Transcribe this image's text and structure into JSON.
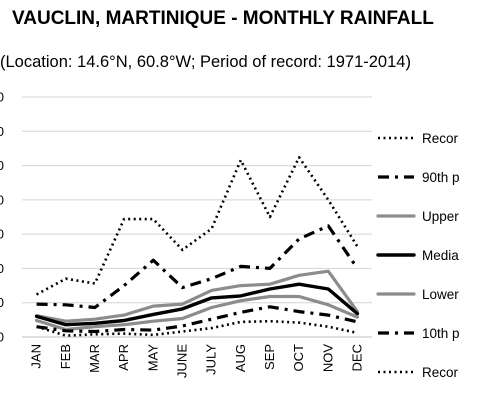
{
  "chart_data": {
    "type": "line",
    "title": "VAUCLIN, MARTINIQUE - MONTHLY RAINFALL",
    "subtitle": "(Location: 14.6°N, 60.8°W; Period of record: 1971-2014)",
    "categories": [
      "JAN",
      "FEB",
      "MAR",
      "APR",
      "MAY",
      "JUNE",
      "JULY",
      "AUG",
      "SEP",
      "OCT",
      "NOV",
      "DEC"
    ],
    "y_ticks": [
      "0",
      "0",
      "0",
      "0",
      "0",
      "0",
      "0",
      "0"
    ],
    "ylim": [
      0,
      350
    ],
    "grid": true,
    "legend_position": "right",
    "series": [
      {
        "name": "Recor",
        "color": "#000000",
        "values": [
          62,
          85,
          78,
          172,
          172,
          127,
          158,
          258,
          175,
          262,
          200,
          132
        ]
      },
      {
        "name": "90th p",
        "color": "#000000",
        "values": [
          48,
          47,
          43,
          75,
          112,
          72,
          85,
          103,
          100,
          143,
          162,
          100
        ]
      },
      {
        "name": "Upper",
        "color": "#8c8c8c",
        "values": [
          31,
          23,
          26,
          32,
          45,
          48,
          68,
          75,
          77,
          90,
          96,
          37
        ]
      },
      {
        "name": "Media",
        "color": "#000000",
        "values": [
          30,
          18,
          20,
          24,
          33,
          41,
          57,
          60,
          70,
          77,
          70,
          34
        ]
      },
      {
        "name": "Lower",
        "color": "#8c8c8c",
        "values": [
          24,
          11,
          15,
          18,
          23,
          27,
          43,
          53,
          59,
          59,
          47,
          29
        ]
      },
      {
        "name": "10th p",
        "color": "#000000",
        "values": [
          15,
          9,
          8,
          11,
          10,
          16,
          26,
          36,
          44,
          37,
          32,
          22
        ]
      },
      {
        "name": "Recor",
        "color": "#000000",
        "values": [
          15,
          2,
          4,
          5,
          3,
          8,
          13,
          22,
          23,
          21,
          15,
          6
        ]
      }
    ]
  }
}
